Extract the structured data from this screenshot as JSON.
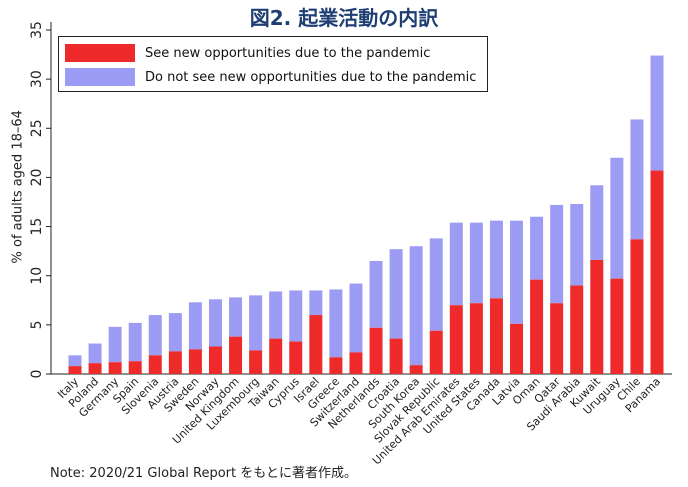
{
  "title": "図2. 起業活動の内訳",
  "note": "Note: 2020/21 Global Report をもとに著者作成。",
  "colors": {
    "series1": "#ef2a2a",
    "series2": "#9c9cf5",
    "axis": "#222222"
  },
  "chart_data": {
    "type": "bar",
    "stacked": true,
    "ylabel": "% of adults aged 18–64",
    "xlabel": "",
    "ylim": [
      0,
      35
    ],
    "yticks": [
      0,
      5,
      10,
      15,
      20,
      25,
      30,
      35
    ],
    "legend_position": "top-left",
    "grid": false,
    "categories": [
      "Italy",
      "Poland",
      "Germany",
      "Spain",
      "Slovenia",
      "Austria",
      "Sweden",
      "Norway",
      "United Kingdom",
      "Luxembourg",
      "Taiwan",
      "Cyprus",
      "Israel",
      "Greece",
      "Switzerland",
      "Netherlands",
      "Croatia",
      "South Korea",
      "Slovak Republic",
      "United Arab Emirates",
      "United States",
      "Canada",
      "Latvia",
      "Oman",
      "Qatar",
      "Saudi Arabia",
      "Kuwait",
      "Uruguay",
      "Chile",
      "Panama"
    ],
    "series": [
      {
        "name": "See new opportunities due to the pandemic",
        "values": [
          0.8,
          1.1,
          1.2,
          1.3,
          1.9,
          2.3,
          2.5,
          2.8,
          3.8,
          2.4,
          3.6,
          3.3,
          6.0,
          1.7,
          2.2,
          4.7,
          3.6,
          0.9,
          4.4,
          7.0,
          7.2,
          7.7,
          5.1,
          9.6,
          7.2,
          9.0,
          11.6,
          9.7,
          13.7,
          20.7
        ]
      },
      {
        "name": "Do not see new opportunities due to the pandemic",
        "values": [
          1.1,
          2.0,
          3.6,
          3.9,
          4.1,
          3.9,
          4.8,
          4.8,
          4.0,
          5.6,
          4.8,
          5.2,
          2.5,
          6.9,
          7.0,
          6.8,
          9.1,
          12.1,
          9.4,
          8.4,
          8.2,
          7.9,
          10.5,
          6.4,
          10.0,
          8.3,
          7.6,
          12.3,
          12.2,
          11.7
        ]
      }
    ]
  }
}
